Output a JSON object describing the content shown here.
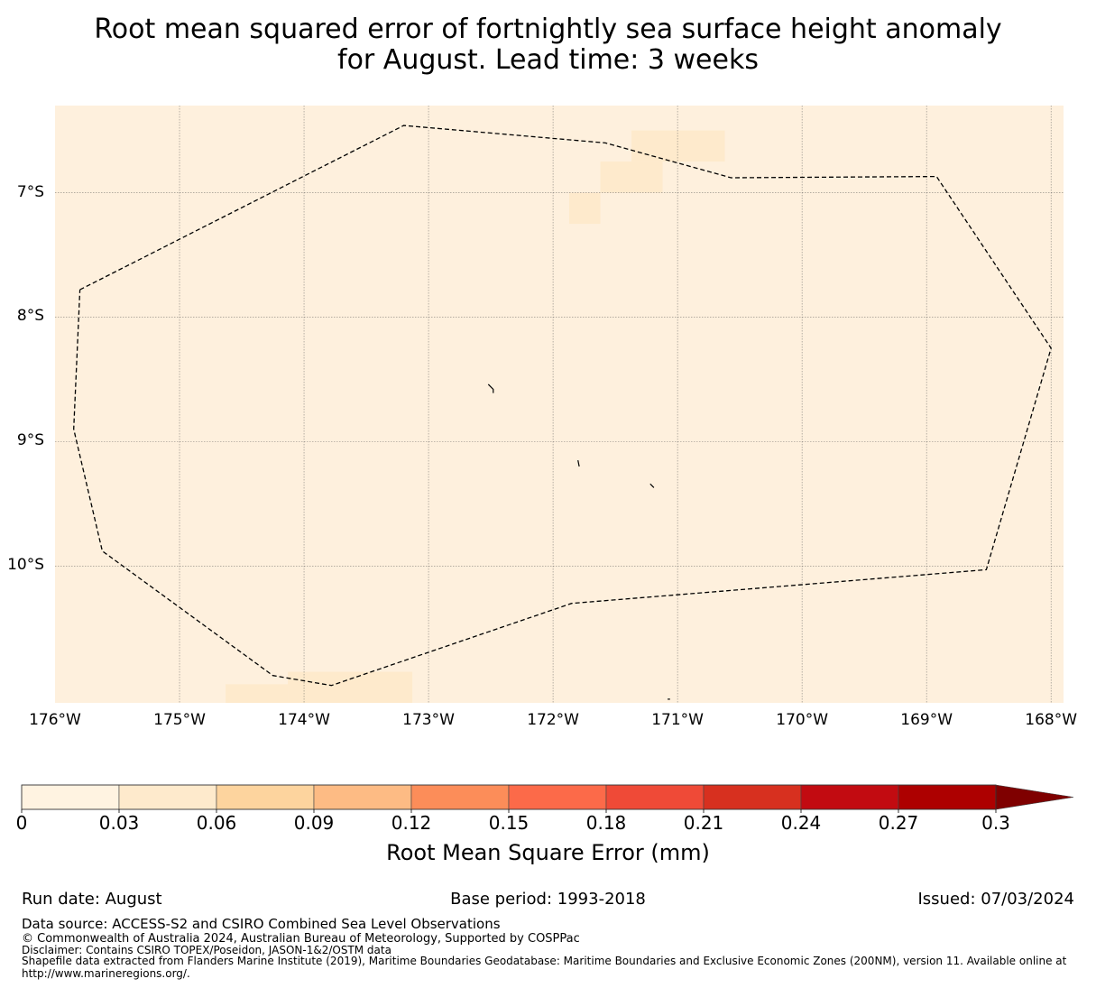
{
  "title": {
    "line1": "Root mean squared error of fortnightly sea surface height anomaly",
    "line2": "for August. Lead time: 3 weeks"
  },
  "map": {
    "background_color": "#fef0dd",
    "lat_labels": [
      "7°S",
      "8°S",
      "9°S",
      "10°S"
    ],
    "lon_labels": [
      "176°W",
      "175°W",
      "174°W",
      "173°W",
      "172°W",
      "171°W",
      "170°W",
      "169°W",
      "168°W"
    ],
    "lon_range": [
      -176,
      -167.9
    ],
    "lat_range": [
      -11.1,
      -6.3
    ],
    "eez_boundary": [
      [
        -175.8,
        -7.78
      ],
      [
        -173.2,
        -6.46
      ],
      [
        -171.58,
        -6.6
      ],
      [
        -170.57,
        -6.88
      ],
      [
        -168.92,
        -6.87
      ],
      [
        -168.5,
        -7.5
      ],
      [
        -168.0,
        -8.25
      ],
      [
        -168.52,
        -10.03
      ],
      [
        -171.85,
        -10.3
      ],
      [
        -173.78,
        -10.96
      ],
      [
        -174.25,
        -10.88
      ],
      [
        -175.62,
        -9.88
      ],
      [
        -175.85,
        -8.9
      ],
      [
        -175.8,
        -7.78
      ]
    ],
    "islands": [
      [
        [
          -172.52,
          -8.54
        ],
        [
          -172.48,
          -8.58
        ],
        [
          -172.48,
          -8.61
        ]
      ],
      [
        [
          -171.8,
          -9.15
        ],
        [
          -171.79,
          -9.2
        ]
      ],
      [
        [
          -171.22,
          -9.34
        ],
        [
          -171.19,
          -9.37
        ]
      ],
      [
        [
          -171.08,
          -11.07
        ],
        [
          -171.06,
          -11.07
        ]
      ]
    ],
    "rmse_cells": [
      {
        "lon": [
          -171.37,
          -170.62
        ],
        "lat": [
          -6.5,
          -6.75
        ],
        "value": 0.03
      },
      {
        "lon": [
          -171.62,
          -171.12
        ],
        "lat": [
          -6.75,
          -7.0
        ],
        "value": 0.03
      },
      {
        "lon": [
          -171.87,
          -171.62
        ],
        "lat": [
          -7.0,
          -7.25
        ],
        "value": 0.03
      },
      {
        "lon": [
          -174.13,
          -173.13
        ],
        "lat": [
          -10.85,
          -11.1
        ],
        "value": 0.03
      },
      {
        "lon": [
          -174.63,
          -174.13
        ],
        "lat": [
          -10.95,
          -11.1
        ],
        "value": 0.03
      }
    ]
  },
  "colorbar": {
    "ticks": [
      "0",
      "0.03",
      "0.06",
      "0.09",
      "0.12",
      "0.15",
      "0.18",
      "0.21",
      "0.24",
      "0.27",
      "0.3"
    ],
    "colors": [
      "#fff3e1",
      "#feeacc",
      "#fdd49e",
      "#fdbb84",
      "#fc8d59",
      "#fc6a49",
      "#ef4a37",
      "#d7301f",
      "#c20b11",
      "#ad0000"
    ],
    "extend_color": "#7f0000",
    "label": "Root Mean Square Error (mm)"
  },
  "footer": {
    "run_date": "Run date: August",
    "base_period": "Base period: 1993-2018",
    "issued": "Issued: 07/03/2024",
    "data_source": "Data source: ACCESS-S2 and CSIRO Combined Sea Level Observations",
    "copyright": "© Commonwealth of Australia 2024, Australian Bureau of Meteorology, Supported by COSPPac",
    "disclaimer": "Disclaimer: Contains CSIRO TOPEX/Poseidon, JASON-1&2/OSTM data",
    "shapefile_line1": "Shapefile data extracted from Flanders Marine Institute (2019), Maritime Boundaries Geodatabase: Maritime Boundaries and Exclusive Economic Zones (200NM), version 11. Available online at",
    "shapefile_line2": "http://www.marineregions.org/."
  }
}
